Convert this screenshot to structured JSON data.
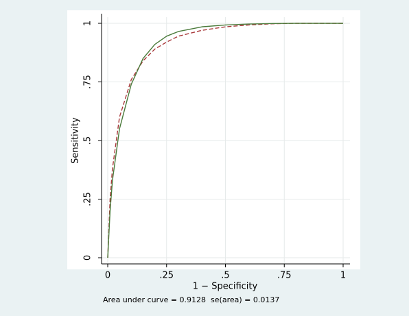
{
  "chart_data": {
    "type": "line",
    "x_label": "1 − Specificity",
    "y_label": "Sensitivity",
    "note": "Area under curve = 0.9128  se(area) = 0.0137",
    "x": [
      0,
      0.01,
      0.02,
      0.05,
      0.1,
      0.15,
      0.2,
      0.25,
      0.3,
      0.4,
      0.5,
      0.6,
      0.7,
      0.8,
      0.9,
      1
    ],
    "series": [
      {
        "color": "#4a7a3a",
        "dash": false,
        "values": [
          0,
          0.2,
          0.33,
          0.55,
          0.74,
          0.85,
          0.91,
          0.945,
          0.965,
          0.985,
          0.993,
          0.997,
          0.999,
          1,
          1,
          1
        ]
      },
      {
        "color": "#a8383a",
        "dash": true,
        "values": [
          0,
          0.25,
          0.38,
          0.6,
          0.76,
          0.84,
          0.89,
          0.92,
          0.945,
          0.97,
          0.985,
          0.993,
          0.998,
          1,
          1,
          1
        ]
      }
    ],
    "xlim": [
      0,
      1
    ],
    "ylim": [
      0,
      1
    ],
    "xticks": [
      0,
      {
        "value": 0.25,
        "label": ".25"
      },
      {
        "value": 0.5,
        "label": ".5"
      },
      {
        "value": 0.75,
        "label": ".75"
      },
      1
    ],
    "yticks": [
      0,
      {
        "value": 0.25,
        "label": ".25"
      },
      {
        "value": 0.5,
        "label": ".5"
      },
      {
        "value": 0.75,
        "label": ".75"
      },
      1
    ],
    "grid": true
  }
}
